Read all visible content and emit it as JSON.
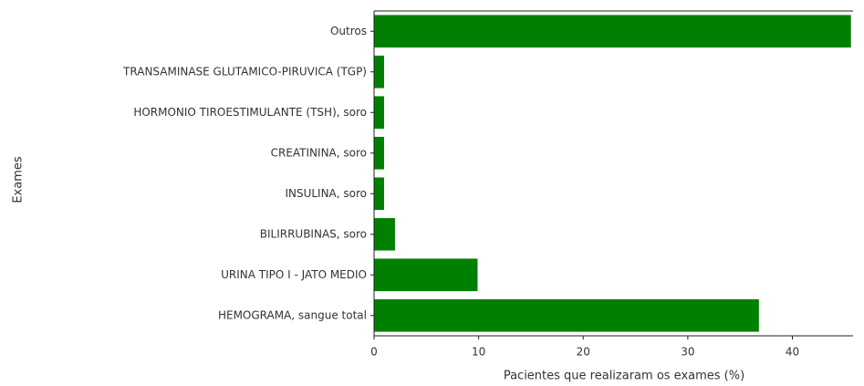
{
  "chart_data": {
    "type": "barh",
    "categories": [
      "Outros",
      "TRANSAMINASE GLUTAMICO-PIRUVICA (TGP)",
      "HORMONIO TIROESTIMULANTE (TSH), soro",
      "CREATININA, soro",
      "INSULINA, soro",
      "BILIRRUBINAS, soro",
      "URINA TIPO I - JATO MEDIO",
      "HEMOGRAMA, sangue total"
    ],
    "values": [
      45.6,
      0.96,
      0.96,
      0.96,
      0.96,
      2.0,
      9.9,
      36.8
    ],
    "color": "#008000",
    "xlabel": "Pacientes que realizaram os exames (%)",
    "ylabel": "Exames",
    "xlim": [
      0,
      45.8
    ],
    "xticks": [
      0,
      10,
      20,
      30,
      40
    ]
  }
}
